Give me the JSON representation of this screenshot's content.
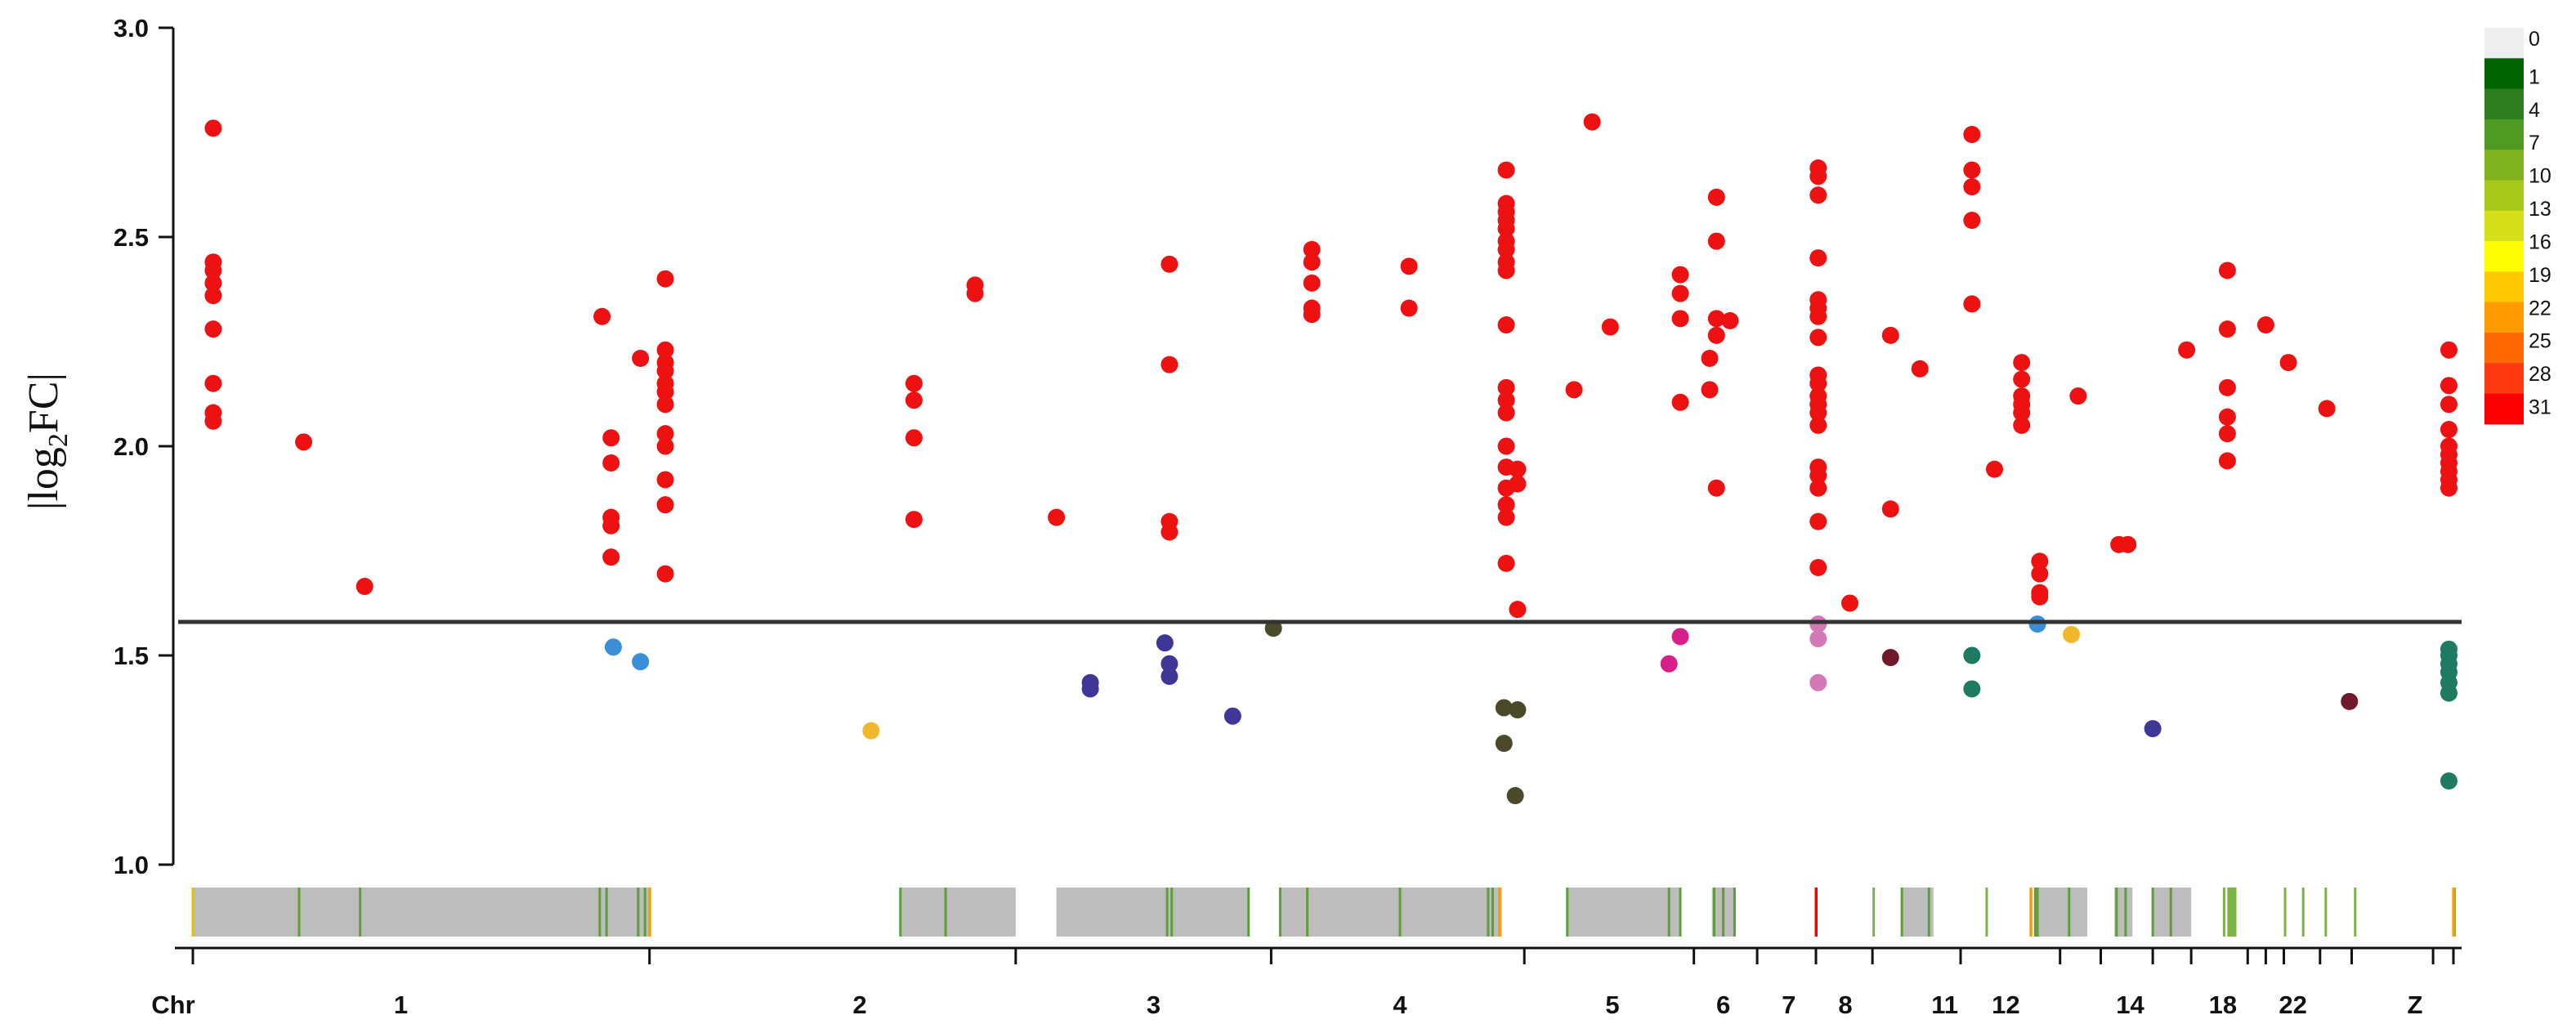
{
  "chart_data": {
    "type": "scatter",
    "ylabel": "|log₂FC|",
    "ylabel_main": "|log",
    "ylabel_sub": "2",
    "ylabel_tail": "FC|",
    "ylim": [
      1.0,
      3.0
    ],
    "y_ticks": [
      1.0,
      1.5,
      2.0,
      2.5,
      3.0
    ],
    "y_tick_labels": [
      "1.0",
      "1.5",
      "2.0",
      "2.5",
      "3.0"
    ],
    "threshold": 1.58,
    "x_axis_label": "Chr",
    "chromosome_labels": [
      {
        "label": "1",
        "pos": 0.092
      },
      {
        "label": "2",
        "pos": 0.295
      },
      {
        "label": "3",
        "pos": 0.425
      },
      {
        "label": "4",
        "pos": 0.534
      },
      {
        "label": "5",
        "pos": 0.628
      },
      {
        "label": "6",
        "pos": 0.677
      },
      {
        "label": "7",
        "pos": 0.706
      },
      {
        "label": "8",
        "pos": 0.731
      },
      {
        "label": "11",
        "pos": 0.775
      },
      {
        "label": "12",
        "pos": 0.802
      },
      {
        "label": "14",
        "pos": 0.857
      },
      {
        "label": "18",
        "pos": 0.898
      },
      {
        "label": "22",
        "pos": 0.929
      },
      {
        "label": "Z",
        "pos": 0.983
      }
    ],
    "chromosome_boundaries": [
      0.0,
      0.202,
      0.364,
      0.477,
      0.589,
      0.664,
      0.692,
      0.718,
      0.743,
      0.782,
      0.826,
      0.844,
      0.867,
      0.884,
      0.909,
      0.917,
      0.925,
      0.941,
      0.955,
      0.991,
      1.0
    ],
    "density_legend": {
      "labels": [
        "0",
        "1",
        "4",
        "7",
        "10",
        "13",
        "16",
        "19",
        "22",
        "25",
        "28",
        "31"
      ],
      "colors": [
        "#eeeeee",
        "#006400",
        "#2e7d1e",
        "#4e9a22",
        "#7fb31e",
        "#a8c81a",
        "#d6e01a",
        "#ffff00",
        "#ffc800",
        "#ff9a00",
        "#ff6a00",
        "#ff3a10",
        "#ff0000"
      ]
    },
    "density_segments": [
      {
        "start": 0.0,
        "end": 0.202,
        "lines": [
          0.0,
          0.047,
          0.074,
          0.18,
          0.183,
          0.197,
          0.2
        ]
      },
      {
        "start": 0.313,
        "end": 0.364,
        "lines": [
          0.313,
          0.333
        ]
      },
      {
        "start": 0.382,
        "end": 0.467,
        "lines": [
          0.431,
          0.433,
          0.467
        ]
      },
      {
        "start": 0.481,
        "end": 0.579,
        "lines": [
          0.481,
          0.493,
          0.534,
          0.573,
          0.575
        ]
      },
      {
        "start": 0.608,
        "end": 0.658,
        "lines": [
          0.608,
          0.658,
          0.653
        ]
      },
      {
        "start": 0.672,
        "end": 0.682,
        "lines": [
          0.673,
          0.677,
          0.682
        ]
      },
      {
        "start": 0.743,
        "end": 0.744,
        "lines": []
      },
      {
        "start": 0.756,
        "end": 0.77,
        "lines": [
          0.756,
          0.768
        ]
      },
      {
        "start": 0.793,
        "end": 0.794,
        "lines": []
      },
      {
        "start": 0.815,
        "end": 0.838,
        "lines": [
          0.815,
          0.816,
          0.83
        ]
      },
      {
        "start": 0.85,
        "end": 0.858,
        "lines": [
          0.851,
          0.855
        ]
      },
      {
        "start": 0.867,
        "end": 0.884,
        "lines": [
          0.867,
          0.875
        ]
      },
      {
        "start": 0.9,
        "end": 0.901,
        "lines": []
      },
      {
        "start": 0.898,
        "end": 0.899,
        "lines": []
      },
      {
        "start": 0.901,
        "end": 0.904,
        "lines": []
      },
      {
        "start": 0.925,
        "end": 0.926,
        "lines": []
      },
      {
        "start": 0.933,
        "end": 0.934,
        "lines": []
      },
      {
        "start": 0.943,
        "end": 0.944,
        "lines": []
      },
      {
        "start": 0.956,
        "end": 0.957,
        "lines": []
      },
      {
        "start": 1.0,
        "end": 1.001,
        "lines": []
      }
    ],
    "density_hot_lines": [
      {
        "pos": 0.0,
        "color": "#e8c000"
      },
      {
        "pos": 0.202,
        "color": "#ff9a00"
      },
      {
        "pos": 0.578,
        "color": "#ff9a00"
      },
      {
        "pos": 0.718,
        "color": "#ff0000"
      },
      {
        "pos": 0.813,
        "color": "#ff9a00"
      },
      {
        "pos": 1.0,
        "color": "#ff9a00"
      }
    ],
    "series": [
      {
        "color": "#ee1111",
        "points": [
          [
            0.009,
            2.76
          ],
          [
            0.009,
            2.44
          ],
          [
            0.009,
            2.42
          ],
          [
            0.009,
            2.39
          ],
          [
            0.009,
            2.36
          ],
          [
            0.009,
            2.28
          ],
          [
            0.009,
            2.15
          ],
          [
            0.009,
            2.08
          ],
          [
            0.009,
            2.06
          ],
          [
            0.049,
            2.01
          ],
          [
            0.076,
            1.665
          ],
          [
            0.181,
            2.31
          ],
          [
            0.185,
            2.02
          ],
          [
            0.185,
            1.96
          ],
          [
            0.185,
            1.83
          ],
          [
            0.185,
            1.81
          ],
          [
            0.185,
            1.735
          ],
          [
            0.198,
            2.21
          ],
          [
            0.209,
            2.4
          ],
          [
            0.209,
            2.23
          ],
          [
            0.209,
            2.2
          ],
          [
            0.209,
            2.18
          ],
          [
            0.209,
            2.15
          ],
          [
            0.209,
            2.13
          ],
          [
            0.209,
            2.1
          ],
          [
            0.209,
            2.03
          ],
          [
            0.209,
            2.0
          ],
          [
            0.209,
            1.92
          ],
          [
            0.209,
            1.86
          ],
          [
            0.209,
            1.695
          ],
          [
            0.319,
            2.15
          ],
          [
            0.319,
            2.11
          ],
          [
            0.319,
            2.02
          ],
          [
            0.319,
            1.825
          ],
          [
            0.346,
            2.385
          ],
          [
            0.346,
            2.365
          ],
          [
            0.382,
            1.83
          ],
          [
            0.432,
            2.435
          ],
          [
            0.432,
            2.195
          ],
          [
            0.432,
            1.82
          ],
          [
            0.432,
            1.795
          ],
          [
            0.495,
            2.47
          ],
          [
            0.495,
            2.44
          ],
          [
            0.495,
            2.39
          ],
          [
            0.495,
            2.33
          ],
          [
            0.495,
            2.315
          ],
          [
            0.538,
            2.43
          ],
          [
            0.538,
            2.33
          ],
          [
            0.581,
            2.66
          ],
          [
            0.581,
            2.58
          ],
          [
            0.581,
            2.56
          ],
          [
            0.581,
            2.54
          ],
          [
            0.581,
            2.52
          ],
          [
            0.581,
            2.49
          ],
          [
            0.581,
            2.47
          ],
          [
            0.581,
            2.44
          ],
          [
            0.581,
            2.42
          ],
          [
            0.581,
            2.29
          ],
          [
            0.581,
            2.14
          ],
          [
            0.581,
            2.11
          ],
          [
            0.581,
            2.08
          ],
          [
            0.581,
            2.0
          ],
          [
            0.581,
            1.95
          ],
          [
            0.581,
            1.9
          ],
          [
            0.581,
            1.86
          ],
          [
            0.581,
            1.83
          ],
          [
            0.581,
            1.72
          ],
          [
            0.586,
            1.945
          ],
          [
            0.586,
            1.91
          ],
          [
            0.586,
            1.61
          ],
          [
            0.611,
            2.135
          ],
          [
            0.619,
            2.775
          ],
          [
            0.627,
            2.285
          ],
          [
            0.658,
            2.41
          ],
          [
            0.658,
            2.365
          ],
          [
            0.658,
            2.305
          ],
          [
            0.658,
            2.105
          ],
          [
            0.674,
            2.595
          ],
          [
            0.674,
            2.49
          ],
          [
            0.674,
            2.305
          ],
          [
            0.674,
            2.265
          ],
          [
            0.674,
            1.9
          ],
          [
            0.671,
            2.21
          ],
          [
            0.671,
            2.135
          ],
          [
            0.68,
            2.3
          ],
          [
            0.719,
            2.665
          ],
          [
            0.719,
            2.645
          ],
          [
            0.719,
            2.6
          ],
          [
            0.719,
            2.45
          ],
          [
            0.719,
            2.35
          ],
          [
            0.719,
            2.33
          ],
          [
            0.719,
            2.31
          ],
          [
            0.719,
            2.26
          ],
          [
            0.719,
            2.17
          ],
          [
            0.719,
            2.15
          ],
          [
            0.719,
            2.12
          ],
          [
            0.719,
            2.1
          ],
          [
            0.719,
            2.08
          ],
          [
            0.719,
            2.05
          ],
          [
            0.719,
            1.95
          ],
          [
            0.719,
            1.93
          ],
          [
            0.719,
            1.9
          ],
          [
            0.719,
            1.82
          ],
          [
            0.719,
            1.71
          ],
          [
            0.733,
            1.625
          ],
          [
            0.751,
            2.265
          ],
          [
            0.751,
            1.85
          ],
          [
            0.764,
            2.185
          ],
          [
            0.787,
            2.745
          ],
          [
            0.787,
            2.66
          ],
          [
            0.787,
            2.62
          ],
          [
            0.787,
            2.54
          ],
          [
            0.787,
            2.34
          ],
          [
            0.797,
            1.945
          ],
          [
            0.809,
            2.2
          ],
          [
            0.809,
            2.16
          ],
          [
            0.809,
            2.12
          ],
          [
            0.809,
            2.1
          ],
          [
            0.809,
            2.08
          ],
          [
            0.809,
            2.05
          ],
          [
            0.817,
            1.725
          ],
          [
            0.817,
            1.695
          ],
          [
            0.817,
            1.65
          ],
          [
            0.817,
            1.64
          ],
          [
            0.834,
            2.12
          ],
          [
            0.852,
            1.765
          ],
          [
            0.856,
            1.765
          ],
          [
            0.882,
            2.23
          ],
          [
            0.9,
            2.42
          ],
          [
            0.9,
            2.28
          ],
          [
            0.9,
            2.14
          ],
          [
            0.9,
            2.07
          ],
          [
            0.9,
            2.03
          ],
          [
            0.9,
            1.965
          ],
          [
            0.917,
            2.29
          ],
          [
            0.927,
            2.2
          ],
          [
            0.944,
            2.09
          ],
          [
            0.998,
            2.23
          ],
          [
            0.998,
            2.145
          ],
          [
            0.998,
            2.1
          ],
          [
            0.998,
            2.04
          ],
          [
            0.998,
            2.0
          ],
          [
            0.998,
            1.98
          ],
          [
            0.998,
            1.96
          ],
          [
            0.998,
            1.94
          ],
          [
            0.998,
            1.92
          ],
          [
            0.998,
            1.9
          ]
        ]
      },
      {
        "color": "#3a8fd8",
        "points": [
          [
            0.186,
            1.52
          ],
          [
            0.198,
            1.485
          ],
          [
            0.816,
            1.575
          ]
        ]
      },
      {
        "color": "#f1b82c",
        "points": [
          [
            0.3,
            1.32
          ],
          [
            0.831,
            1.55
          ]
        ]
      },
      {
        "color": "#3f3798",
        "points": [
          [
            0.397,
            1.435
          ],
          [
            0.397,
            1.42
          ],
          [
            0.43,
            1.53
          ],
          [
            0.432,
            1.48
          ],
          [
            0.432,
            1.45
          ],
          [
            0.46,
            1.355
          ],
          [
            0.867,
            1.325
          ]
        ]
      },
      {
        "color": "#4a4a2a",
        "points": [
          [
            0.478,
            1.565
          ],
          [
            0.58,
            1.375
          ],
          [
            0.586,
            1.37
          ],
          [
            0.58,
            1.29
          ],
          [
            0.585,
            1.165
          ]
        ]
      },
      {
        "color": "#d61f8a",
        "points": [
          [
            0.653,
            1.48
          ],
          [
            0.658,
            1.545
          ]
        ]
      },
      {
        "color": "#d478b8",
        "points": [
          [
            0.719,
            1.575
          ],
          [
            0.719,
            1.54
          ],
          [
            0.719,
            1.435
          ]
        ]
      },
      {
        "color": "#6e1a2a",
        "points": [
          [
            0.751,
            1.495
          ],
          [
            0.954,
            1.39
          ]
        ]
      },
      {
        "color": "#1f7a62",
        "points": [
          [
            0.787,
            1.5
          ],
          [
            0.787,
            1.42
          ],
          [
            0.998,
            1.515
          ],
          [
            0.998,
            1.5
          ],
          [
            0.998,
            1.48
          ],
          [
            0.998,
            1.46
          ],
          [
            0.998,
            1.435
          ],
          [
            0.998,
            1.41
          ],
          [
            0.998,
            1.2
          ]
        ]
      }
    ]
  }
}
